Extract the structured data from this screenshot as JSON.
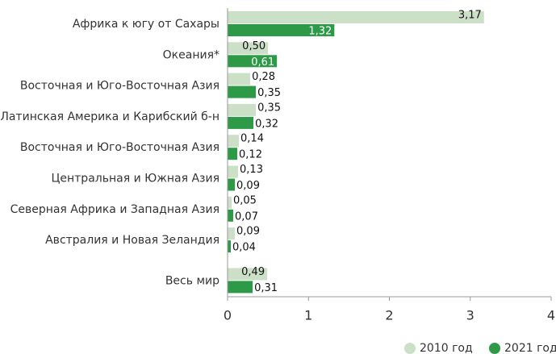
{
  "chart_data": {
    "type": "bar",
    "orientation": "horizontal",
    "categories": [
      "Африка к югу от Сахары",
      "Океания*",
      "Восточная и Юго-Восточная Азия",
      "Латинская Америка и Карибский б-н",
      "Восточная и Юго-Восточная Азия",
      "Центральная и Южная Азия",
      "Северная Африка и Западная Азия",
      "Австралия и Новая Зеландия",
      "Весь мир"
    ],
    "series": [
      {
        "name": "2010 год",
        "color": "#cbe0c6",
        "values": [
          3.17,
          0.5,
          0.28,
          0.35,
          0.14,
          0.13,
          0.05,
          0.09,
          0.49
        ],
        "value_labels": [
          "3,17",
          "0,50",
          "0,28",
          "0,35",
          "0,14",
          "0,13",
          "0,05",
          "0,09",
          "0,49"
        ]
      },
      {
        "name": "2021 год",
        "color": "#2e9a47",
        "values": [
          1.32,
          0.61,
          0.35,
          0.32,
          0.12,
          0.09,
          0.07,
          0.04,
          0.31
        ],
        "value_labels": [
          "1,32",
          "0,61",
          "0,35",
          "0,32",
          "0,12",
          "0,09",
          "0,07",
          "0,04",
          "0,31"
        ]
      }
    ],
    "xlim": [
      0,
      4
    ],
    "xticks": [
      0,
      1,
      2,
      3,
      4
    ],
    "legend": "bottom-right"
  }
}
